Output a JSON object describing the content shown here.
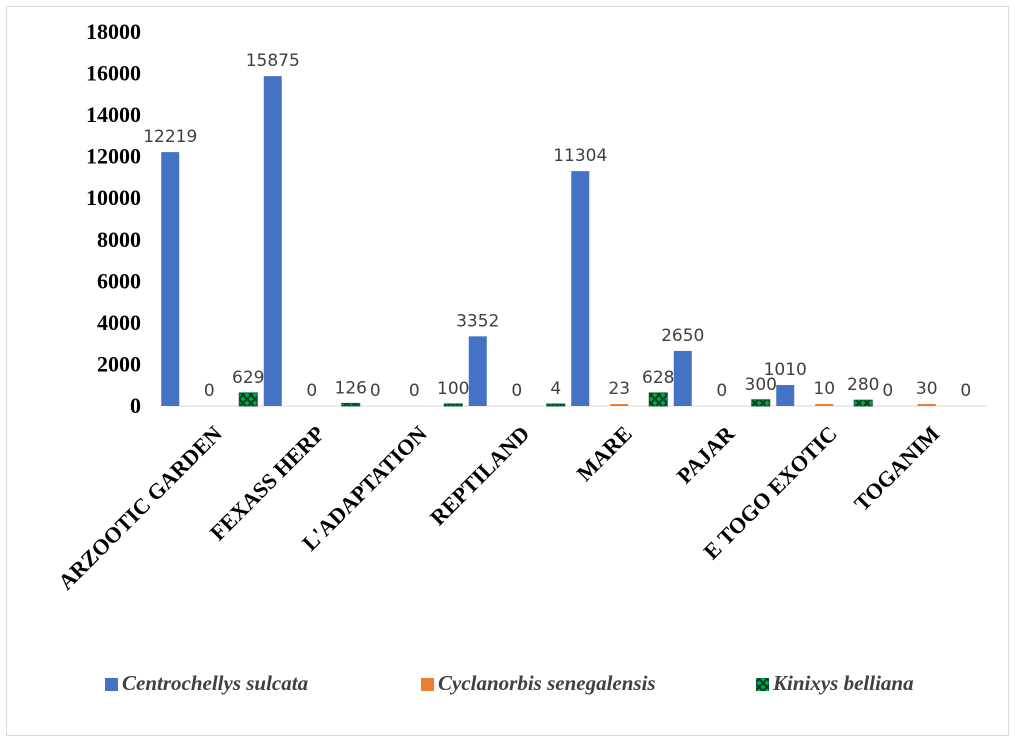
{
  "chart_data": {
    "type": "bar",
    "categories": [
      "ARZOOTIC GARDEN",
      "FEXASS HERP",
      "L'ADAPTATION",
      "REPTILAND",
      "MARE",
      "PAJAR",
      "E TOGO EXOTIC",
      "TOGANIM"
    ],
    "series": [
      {
        "name": "Centrochellys sulcata",
        "values": [
          12219,
          15875,
          0,
          3352,
          11304,
          2650,
          1010,
          0
        ],
        "color": "#4472c4"
      },
      {
        "name": "Cyclanorbis senegalensis",
        "values": [
          0,
          0,
          0,
          0,
          23,
          0,
          10,
          30
        ],
        "color": "#ed7d31"
      },
      {
        "name": "Kinixys belliana",
        "values": [
          629,
          126,
          100,
          4,
          628,
          300,
          280,
          0
        ],
        "color": "#00a651"
      }
    ],
    "ylim": [
      0,
      18000
    ],
    "yticks": [
      "0",
      "2000",
      "4000",
      "6000",
      "8000",
      "10000",
      "12000",
      "14000",
      "16000",
      "18000"
    ],
    "grid": false,
    "legend": "bottom",
    "data_labels": [
      [
        "12219",
        "0",
        "629"
      ],
      [
        "15875",
        "0",
        "126"
      ],
      [
        "0",
        "0",
        "100"
      ],
      [
        "3352",
        "0",
        "4"
      ],
      [
        "11304",
        "23",
        "628"
      ],
      [
        "2650",
        "0",
        "300"
      ],
      [
        "1010",
        "10",
        "280"
      ],
      [
        "0",
        "30",
        "0"
      ]
    ]
  }
}
